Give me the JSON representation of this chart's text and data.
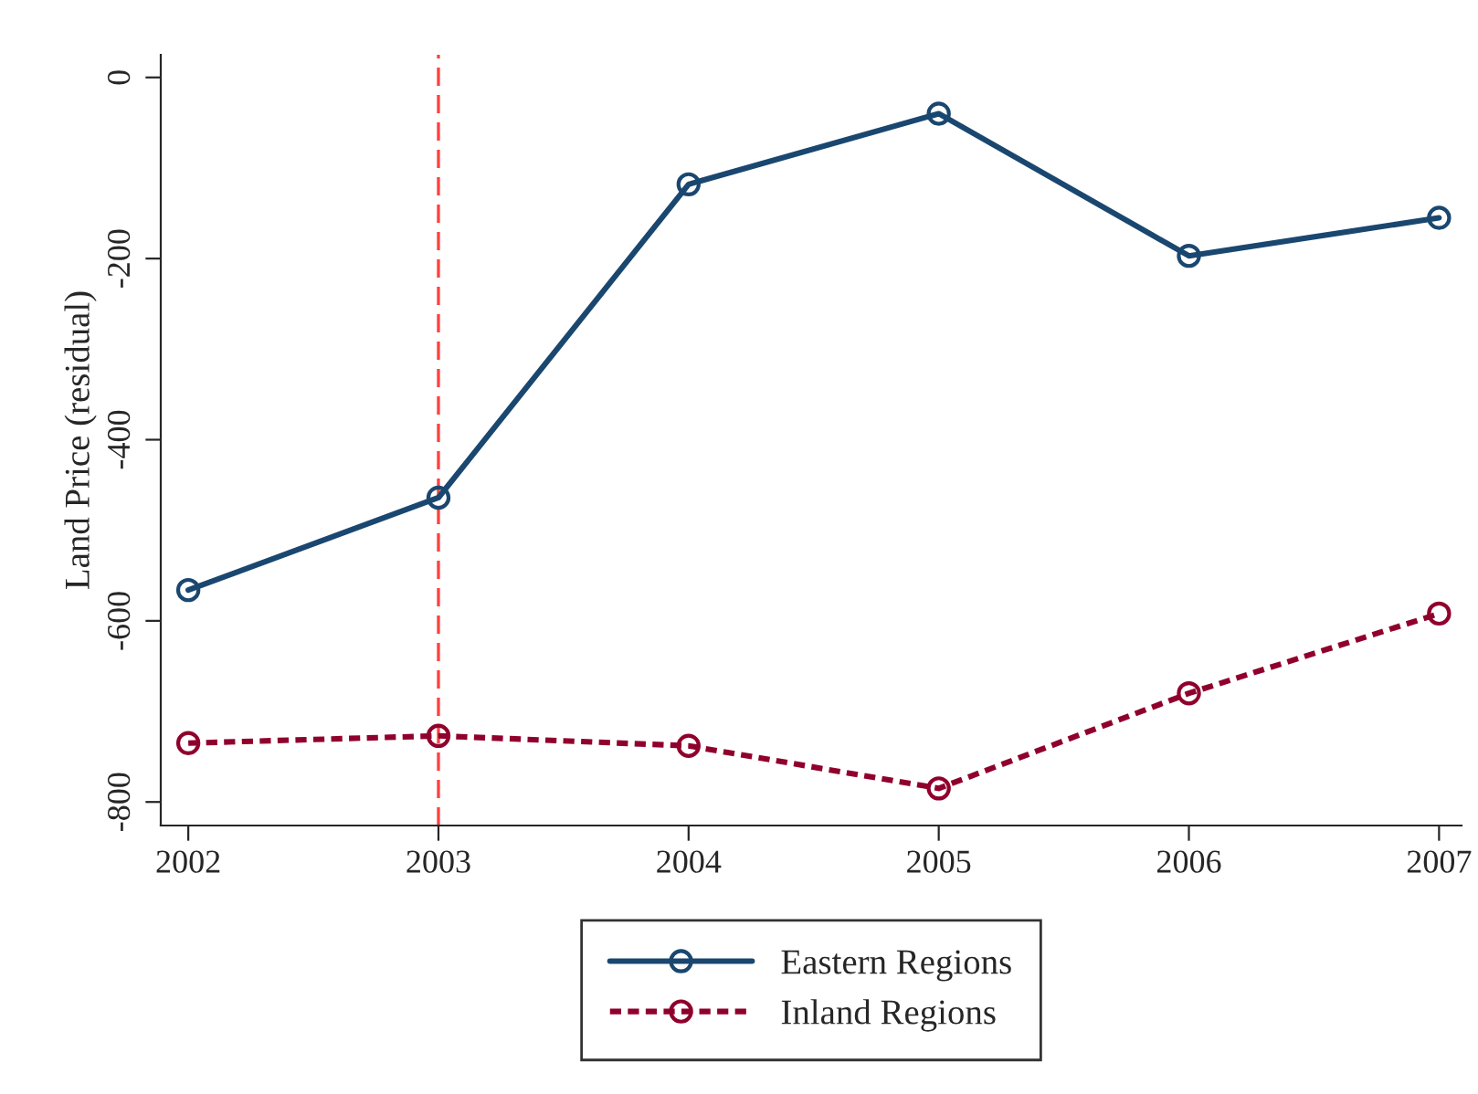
{
  "chart_data": {
    "type": "line",
    "ylabel": "Land Price (residual)",
    "x": [
      2002,
      2003,
      2004,
      2005,
      2006,
      2007
    ],
    "series": [
      {
        "name": "Eastern Regions",
        "color": "#1a476f",
        "values": [
          -566,
          -464,
          -118,
          -40,
          -197,
          -155
        ],
        "line_style": "solid"
      },
      {
        "name": "Inland Regions",
        "color": "#90002d",
        "values": [
          -735,
          -727,
          -738,
          -785,
          -680,
          -592
        ],
        "line_style": "dotted"
      }
    ],
    "xlim": [
      2001.89,
      2007.09
    ],
    "xticks": [
      2002,
      2003,
      2004,
      2005,
      2006,
      2007
    ],
    "ylim": [
      -826,
      25
    ],
    "yticks": [
      -800,
      -600,
      -400,
      -200,
      0
    ],
    "ref_lines": [
      {
        "axis": "x",
        "value": 2003,
        "color": "#ff4040",
        "line_style": "dashed"
      }
    ],
    "marker": "circle",
    "grid": false,
    "legend": "bottom"
  }
}
